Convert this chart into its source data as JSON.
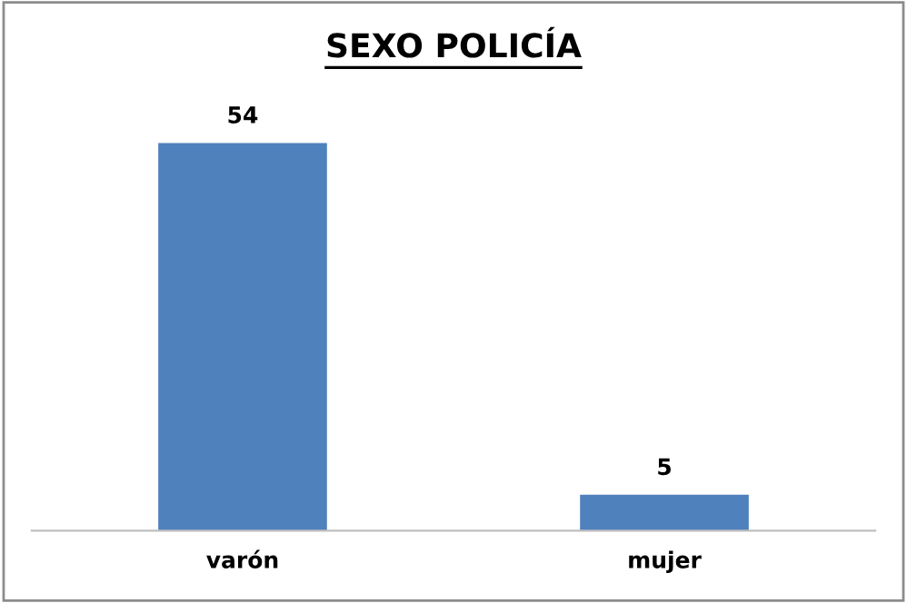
{
  "chart_data": {
    "type": "bar",
    "title": "SEXO POLICÍA",
    "categories": [
      "varón",
      "mujer"
    ],
    "values": [
      54,
      5
    ],
    "color": "#4f81bd",
    "data_labels": true,
    "grid": false,
    "legend": false
  }
}
